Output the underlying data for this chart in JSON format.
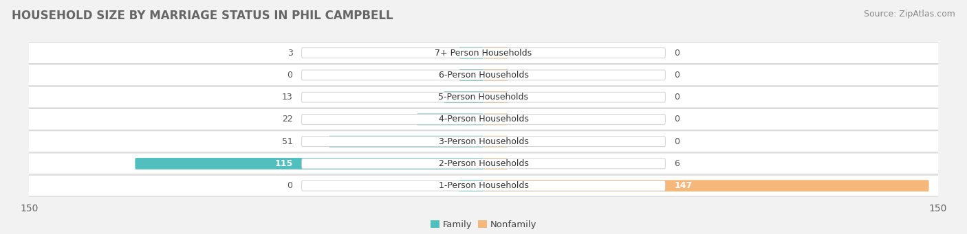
{
  "title": "HOUSEHOLD SIZE BY MARRIAGE STATUS IN PHIL CAMPBELL",
  "source": "Source: ZipAtlas.com",
  "categories": [
    "7+ Person Households",
    "6-Person Households",
    "5-Person Households",
    "4-Person Households",
    "3-Person Households",
    "2-Person Households",
    "1-Person Households"
  ],
  "family_values": [
    3,
    0,
    13,
    22,
    51,
    115,
    0
  ],
  "nonfamily_values": [
    0,
    0,
    0,
    0,
    0,
    6,
    147
  ],
  "family_color": "#52BFBF",
  "nonfamily_color": "#F5B87A",
  "xlim": 150,
  "bar_height": 0.52,
  "background_color": "#f2f2f2",
  "row_bg_color": "#ffffff",
  "row_bg_edge_color": "#d8d8d8",
  "label_bg_color": "#ffffff",
  "label_edge_color": "#cccccc",
  "title_fontsize": 12,
  "source_fontsize": 9,
  "tick_fontsize": 10,
  "cat_fontsize": 9,
  "value_fontsize": 9,
  "min_bar_display": 6,
  "stub_size": 8
}
